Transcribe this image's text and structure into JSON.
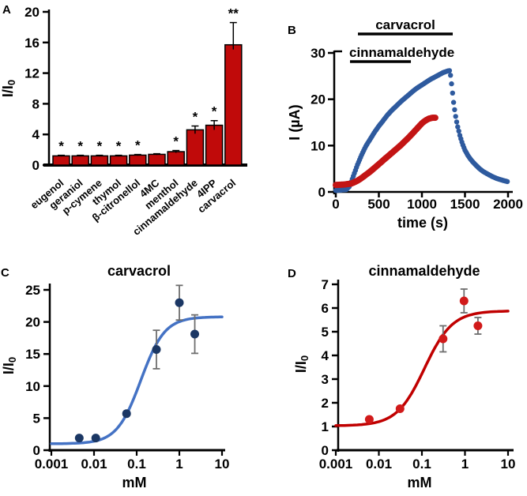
{
  "figure": {
    "background": "#ffffff"
  },
  "chart_data": [
    {
      "panel": "A",
      "type": "bar",
      "ylabel_main": "I/I",
      "ylabel_sub": "0",
      "ylim": [
        0,
        20
      ],
      "yticks": [
        0,
        4,
        8,
        12,
        16,
        20
      ],
      "categories": [
        "eugenol",
        "geraniol",
        "p-cymene",
        "thymol",
        "β-citronellol",
        "4MC",
        "menthol",
        "cinnamaldehyde",
        "4IPP",
        "carvacrol"
      ],
      "values": [
        1.2,
        1.2,
        1.2,
        1.2,
        1.3,
        1.4,
        1.75,
        4.6,
        5.2,
        15.7
      ],
      "errors": [
        0.08,
        0.08,
        0.08,
        0.08,
        0.08,
        0.08,
        0.15,
        0.5,
        0.6,
        2.9
      ],
      "significance": [
        "*",
        "*",
        "*",
        "*",
        "*",
        "",
        "*",
        "*",
        "*",
        "**"
      ],
      "bar_color": "#c00a0a",
      "bar_outline": "#000000",
      "error_color": "#000000"
    },
    {
      "panel": "B",
      "type": "scatter",
      "xlabel": "time (s)",
      "ylabel_main": "I (µA)",
      "ylabel_sub": "",
      "xlim": [
        0,
        2000
      ],
      "ylim": [
        0,
        30
      ],
      "xticks": [
        0,
        500,
        1000,
        1500,
        2000
      ],
      "yticks": [
        0,
        10,
        20,
        30
      ],
      "annotations": [
        {
          "label": "carvacrol",
          "t_start": 257,
          "t_end": 1358
        },
        {
          "label": "cinnamaldehyde",
          "t_start": 165,
          "t_end": 872
        }
      ],
      "series": [
        {
          "name": "carvacrol",
          "color": "#2e5a9e",
          "keypoints": [
            [
              0,
              0.3
            ],
            [
              120,
              0.5
            ],
            [
              160,
              1.2
            ],
            [
              200,
              3.2
            ],
            [
              250,
              5.8
            ],
            [
              300,
              8.0
            ],
            [
              350,
              9.9
            ],
            [
              400,
              11.4
            ],
            [
              450,
              12.9
            ],
            [
              500,
              14.2
            ],
            [
              550,
              15.4
            ],
            [
              600,
              16.6
            ],
            [
              650,
              17.6
            ],
            [
              700,
              18.5
            ],
            [
              750,
              19.4
            ],
            [
              800,
              20.2
            ],
            [
              850,
              21.0
            ],
            [
              900,
              21.8
            ],
            [
              950,
              22.5
            ],
            [
              1000,
              23.1
            ],
            [
              1050,
              23.7
            ],
            [
              1100,
              24.3
            ],
            [
              1150,
              24.8
            ],
            [
              1200,
              25.3
            ],
            [
              1250,
              25.8
            ],
            [
              1300,
              26.1
            ],
            [
              1325,
              26.2
            ],
            [
              1340,
              24.0
            ],
            [
              1355,
              21.5
            ],
            [
              1370,
              19.0
            ],
            [
              1390,
              16.5
            ],
            [
              1410,
              14.5
            ],
            [
              1440,
              12.2
            ],
            [
              1470,
              10.4
            ],
            [
              1500,
              9.0
            ],
            [
              1540,
              7.7
            ],
            [
              1580,
              6.7
            ],
            [
              1620,
              5.9
            ],
            [
              1670,
              5.0
            ],
            [
              1720,
              4.3
            ],
            [
              1770,
              3.8
            ],
            [
              1820,
              3.3
            ],
            [
              1870,
              2.9
            ],
            [
              1920,
              2.6
            ],
            [
              1960,
              2.4
            ],
            [
              2000,
              2.2
            ]
          ]
        },
        {
          "name": "cinnamaldehyde",
          "color": "#c31414",
          "keypoints": [
            [
              0,
              1.5
            ],
            [
              100,
              1.6
            ],
            [
              180,
              1.8
            ],
            [
              250,
              2.4
            ],
            [
              300,
              3.0
            ],
            [
              350,
              3.7
            ],
            [
              400,
              4.4
            ],
            [
              450,
              5.2
            ],
            [
              500,
              6.0
            ],
            [
              550,
              6.8
            ],
            [
              600,
              7.6
            ],
            [
              650,
              8.4
            ],
            [
              700,
              9.2
            ],
            [
              750,
              10.0
            ],
            [
              800,
              10.9
            ],
            [
              850,
              11.8
            ],
            [
              900,
              12.8
            ],
            [
              950,
              13.8
            ],
            [
              1000,
              14.8
            ],
            [
              1040,
              15.4
            ],
            [
              1080,
              15.8
            ],
            [
              1120,
              16.0
            ],
            [
              1160,
              16.0
            ]
          ]
        }
      ]
    },
    {
      "panel": "C",
      "type": "scatter-fit",
      "title": "carvacrol",
      "xlabel": "mM",
      "ylabel_main": "I/I",
      "ylabel_sub": "0",
      "xscale": "log",
      "xlim": [
        0.001,
        10
      ],
      "ylim": [
        0,
        25
      ],
      "yticks": [
        0,
        5,
        10,
        15,
        20,
        25
      ],
      "xticks": [
        0.001,
        0.01,
        0.1,
        1,
        10
      ],
      "xtick_labels": [
        "0.001",
        "0.01",
        "0.1",
        "1",
        "10"
      ],
      "points": {
        "x": [
          0.0045,
          0.011,
          0.058,
          0.29,
          1.0,
          2.3
        ],
        "y": [
          1.9,
          1.9,
          5.7,
          15.7,
          23.0,
          18.1
        ],
        "err": [
          0,
          0,
          0,
          3.0,
          2.7,
          3.0
        ]
      },
      "fit": {
        "bottom": 1.0,
        "top": 20.8,
        "ec50": 0.125,
        "hill": 1.55
      },
      "point_color": "#1b3764",
      "curve_color": "#4472c4",
      "error_color": "#6e6e6e",
      "unit_color": "#595959"
    },
    {
      "panel": "D",
      "type": "scatter-fit",
      "title": "cinnamaldehyde",
      "xlabel": "mM",
      "ylabel_main": "I/I",
      "ylabel_sub": "0",
      "xscale": "log",
      "xlim": [
        0.001,
        10
      ],
      "ylim": [
        0,
        7
      ],
      "yticks": [
        0,
        1,
        2,
        3,
        4,
        5,
        6,
        7
      ],
      "xticks": [
        0.001,
        0.01,
        0.1,
        1,
        10
      ],
      "xtick_labels": [
        "0.001",
        "0.01",
        "0.1",
        "1",
        "10"
      ],
      "points": {
        "x": [
          0.006,
          0.031,
          0.31,
          0.95,
          2.0
        ],
        "y": [
          1.3,
          1.75,
          4.7,
          6.3,
          5.25
        ],
        "err": [
          0,
          0,
          0.55,
          0.5,
          0.35
        ]
      },
      "fit": {
        "bottom": 1.03,
        "top": 5.88,
        "ec50": 0.115,
        "hill": 1.35
      },
      "point_color": "#d11a1a",
      "curve_color": "#c00000",
      "error_color": "#6e6e6e",
      "unit_color": "#595959"
    }
  ]
}
